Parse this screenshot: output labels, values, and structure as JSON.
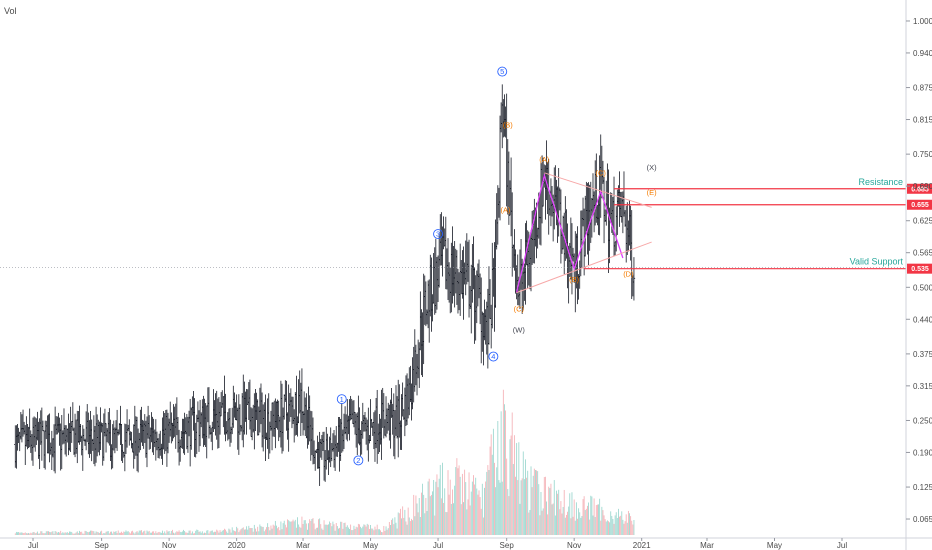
{
  "volume_label": "Vol",
  "chart_data": {
    "type": "ohlc",
    "y_axis": {
      "ticks": [
        "1.000",
        "0.940",
        "0.875",
        "0.815",
        "0.750",
        "0.690",
        "0.625",
        "0.565",
        "0.500",
        "0.440",
        "0.375",
        "0.315",
        "0.250",
        "0.190",
        "0.125",
        "0.065"
      ],
      "range": [
        0.035,
        1.03
      ],
      "position": "right"
    },
    "x_axis": {
      "ticks": [
        "Jul",
        "Sep",
        "Nov",
        "2020",
        "Mar",
        "May",
        "Jul",
        "Sep",
        "Nov",
        "2021",
        "Mar",
        "May",
        "Jul"
      ]
    },
    "price_path": [
      [
        "2019-06-15",
        0.205
      ],
      [
        "2019-07-15",
        0.215
      ],
      [
        "2019-08-15",
        0.218
      ],
      [
        "2019-09-15",
        0.212
      ],
      [
        "2019-10-15",
        0.22
      ],
      [
        "2019-11-15",
        0.232
      ],
      [
        "2019-12-01",
        0.25
      ],
      [
        "2019-12-20",
        0.262
      ],
      [
        "2020-01-10",
        0.258
      ],
      [
        "2020-02-01",
        0.25
      ],
      [
        "2020-02-20",
        0.27
      ],
      [
        "2020-02-28",
        0.295
      ],
      [
        "2020-03-12",
        0.195
      ],
      [
        "2020-03-20",
        0.18
      ],
      [
        "2020-04-05",
        0.215
      ],
      [
        "2020-04-15",
        0.24
      ],
      [
        "2020-04-25",
        0.228
      ],
      [
        "2020-05-10",
        0.25
      ],
      [
        "2020-05-25",
        0.248
      ],
      [
        "2020-06-05",
        0.3
      ],
      [
        "2020-06-20",
        0.47
      ],
      [
        "2020-07-05",
        0.545
      ],
      [
        "2020-07-20",
        0.52
      ],
      [
        "2020-08-05",
        0.49
      ],
      [
        "2020-08-15",
        0.42
      ],
      [
        "2020-08-22",
        0.53
      ],
      [
        "2020-08-28",
        0.86
      ],
      [
        "2020-09-02",
        0.7
      ],
      [
        "2020-09-07",
        0.58
      ],
      [
        "2020-09-12",
        0.49
      ],
      [
        "2020-09-25",
        0.6
      ],
      [
        "2020-10-05",
        0.71
      ],
      [
        "2020-10-20",
        0.62
      ],
      [
        "2020-11-01",
        0.535
      ],
      [
        "2020-11-15",
        0.65
      ],
      [
        "2020-11-25",
        0.68
      ],
      [
        "2020-12-05",
        0.62
      ],
      [
        "2020-12-15",
        0.645
      ],
      [
        "2020-12-25",
        0.545
      ]
    ],
    "volume_path": [
      [
        "2019-06-15",
        0.02
      ],
      [
        "2019-12-15",
        0.03
      ],
      [
        "2020-03-01",
        0.1
      ],
      [
        "2020-05-15",
        0.05
      ],
      [
        "2020-07-01",
        0.38
      ],
      [
        "2020-07-20",
        0.42
      ],
      [
        "2020-08-10",
        0.3
      ],
      [
        "2020-08-28",
        0.85
      ],
      [
        "2020-09-20",
        0.4
      ],
      [
        "2020-10-15",
        0.3
      ],
      [
        "2020-11-15",
        0.22
      ],
      [
        "2020-12-25",
        0.12
      ]
    ],
    "horizontal_lines": [
      {
        "name": "Resistance",
        "value": 0.685,
        "label": "0.685",
        "color": "#f23645"
      },
      {
        "name": "",
        "value": 0.655,
        "label": "0.655",
        "color": "#f23645"
      },
      {
        "name": "Valid Support",
        "value": 0.535,
        "label": "0.535",
        "color": "#f23645"
      }
    ],
    "wave_labels_blue": [
      {
        "text": "5",
        "date": "2020-08-28",
        "price": 0.905
      },
      {
        "text": "3",
        "date": "2020-07-01",
        "price": 0.6
      },
      {
        "text": "4",
        "date": "2020-08-20",
        "price": 0.37
      },
      {
        "text": "1",
        "date": "2020-04-05",
        "price": 0.29
      },
      {
        "text": "2",
        "date": "2020-04-20",
        "price": 0.175
      }
    ],
    "wave_labels_orange": [
      {
        "text": "(B)",
        "date": "2020-09-02",
        "price": 0.8
      },
      {
        "text": "(A)",
        "date": "2020-08-31",
        "price": 0.64
      },
      {
        "text": "(C)",
        "date": "2020-09-12",
        "price": 0.455
      },
      {
        "text": "(A)",
        "date": "2020-10-05",
        "price": 0.735
      },
      {
        "text": "(B)",
        "date": "2020-11-01",
        "price": 0.51
      },
      {
        "text": "(C)",
        "date": "2020-11-25",
        "price": 0.71
      },
      {
        "text": "(D)",
        "date": "2020-12-20",
        "price": 0.52
      },
      {
        "text": "(E)",
        "date": "2021-01-10",
        "price": 0.673
      }
    ],
    "wave_labels_dark": [
      {
        "text": "(W)",
        "date": "2020-09-12",
        "price": 0.415
      },
      {
        "text": "(X)",
        "date": "2021-01-10",
        "price": 0.72
      }
    ]
  }
}
